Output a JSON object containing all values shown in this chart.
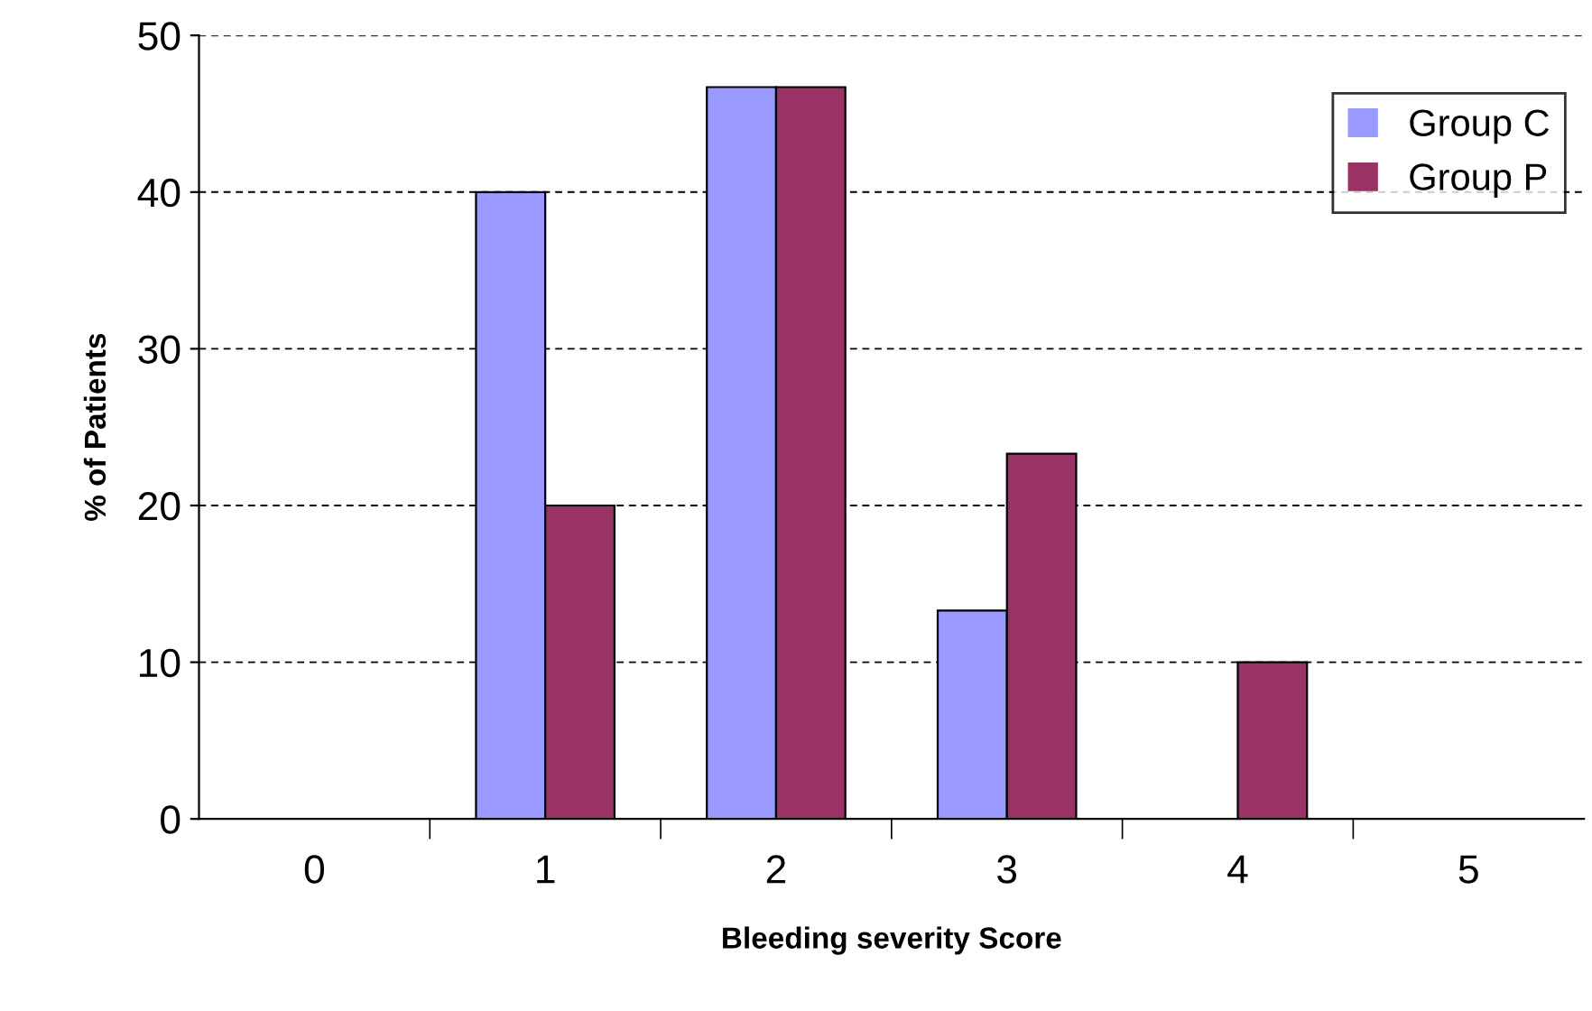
{
  "chart_data": {
    "type": "bar",
    "xlabel": "Bleeding severity Score",
    "ylabel": "% of Patients",
    "categories": [
      "0",
      "1",
      "2",
      "3",
      "4",
      "5"
    ],
    "series": [
      {
        "name": "Group C",
        "color": "#9999ff",
        "values": [
          0,
          40,
          46.7,
          13.3,
          0,
          0
        ]
      },
      {
        "name": "Group P",
        "color": "#993366",
        "values": [
          0,
          20,
          46.7,
          23.3,
          10,
          0
        ]
      }
    ],
    "ylim": [
      0,
      50
    ],
    "yticks": [
      0,
      10,
      20,
      30,
      40,
      50
    ],
    "grid": "y",
    "legend": "top right"
  }
}
